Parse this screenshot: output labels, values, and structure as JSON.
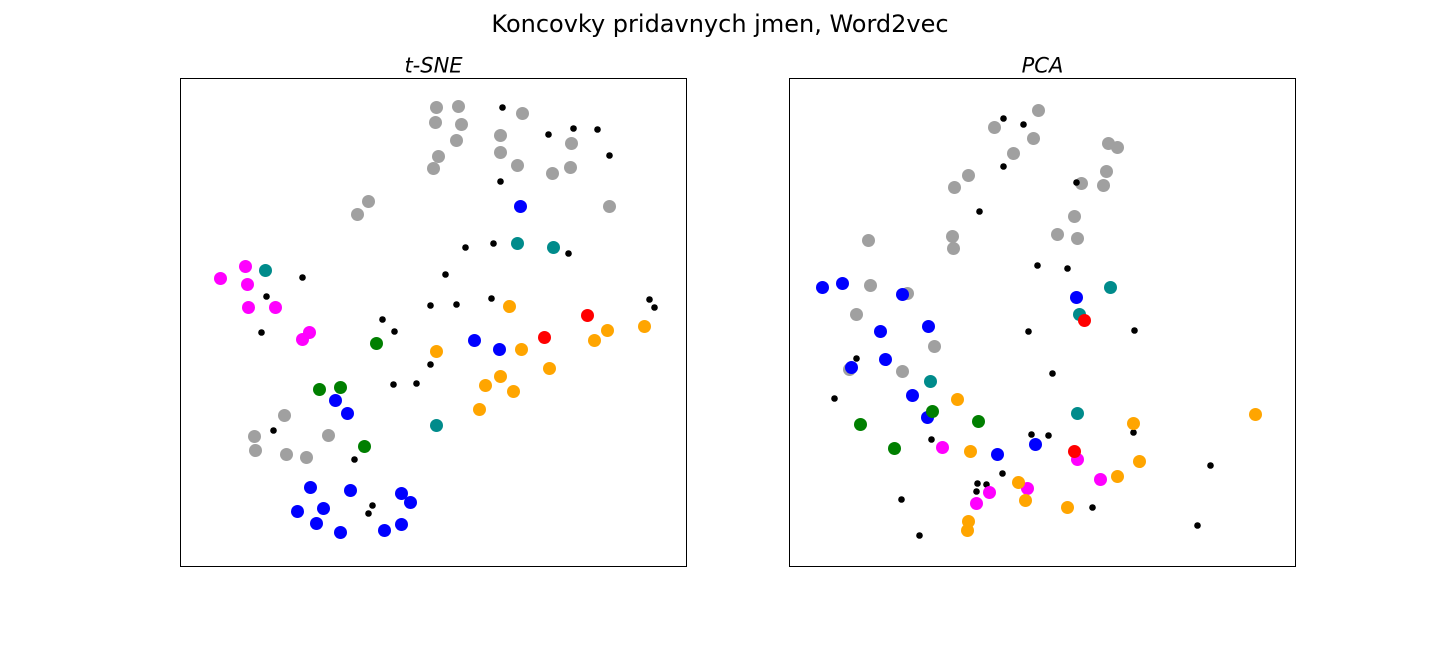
{
  "figure": {
    "title": "Koncovky pridavnych jmen, Word2vec"
  },
  "colors": {
    "gray": "#a0a0a0",
    "black": "#000000",
    "blue": "#0000ff",
    "teal": "#008b8b",
    "magenta": "#ff00ff",
    "green": "#007f00",
    "orange": "#ffa500",
    "red": "#ff0000"
  },
  "chart_data": [
    {
      "type": "scatter",
      "title": "t-SNE",
      "xlabel": "",
      "ylabel": "",
      "xlim": [
        0,
        506
      ],
      "ylim": [
        0,
        488
      ],
      "axis_ticks": "none",
      "grid": false,
      "series": [
        {
          "color": "gray",
          "size": "large",
          "points": [
            [
              256,
              29
            ],
            [
              278,
              28
            ],
            [
              281,
              46
            ],
            [
              342,
              35
            ],
            [
              255,
              44
            ],
            [
              320,
              57
            ],
            [
              276,
              62
            ],
            [
              320,
              74
            ],
            [
              258,
              78
            ],
            [
              253,
              90
            ],
            [
              337,
              87
            ],
            [
              391,
              65
            ],
            [
              390,
              89
            ],
            [
              372,
              95
            ],
            [
              429,
              128
            ],
            [
              188,
              123
            ],
            [
              177,
              136
            ],
            [
              104,
              337
            ],
            [
              74,
              358
            ],
            [
              148,
              357
            ],
            [
              75,
              372
            ],
            [
              106,
              376
            ],
            [
              126,
              379
            ]
          ]
        },
        {
          "color": "black",
          "size": "small",
          "points": [
            [
              322,
              29
            ],
            [
              368,
              56
            ],
            [
              393,
              50
            ],
            [
              417,
              51
            ],
            [
              429,
              77
            ],
            [
              320,
              103
            ],
            [
              285,
              169
            ],
            [
              313,
              165
            ],
            [
              388,
              175
            ],
            [
              265,
              196
            ],
            [
              122,
              199
            ],
            [
              86,
              218
            ],
            [
              250,
              227
            ],
            [
              276,
              226
            ],
            [
              311,
              220
            ],
            [
              81,
              254
            ],
            [
              202,
              241
            ],
            [
              214,
              253
            ],
            [
              469,
              221
            ],
            [
              474,
              229
            ],
            [
              250,
              286
            ],
            [
              213,
              306
            ],
            [
              236,
              305
            ],
            [
              93,
              352
            ],
            [
              174,
              381
            ],
            [
              192,
              427
            ],
            [
              188,
              435
            ]
          ]
        },
        {
          "color": "blue",
          "size": "large",
          "points": [
            [
              340,
              128
            ],
            [
              294,
              262
            ],
            [
              319,
              271
            ],
            [
              155,
              322
            ],
            [
              167,
              335
            ],
            [
              130,
              409
            ],
            [
              170,
              412
            ],
            [
              221,
              415
            ],
            [
              230,
              424
            ],
            [
              117,
              433
            ],
            [
              143,
              430
            ],
            [
              136,
              445
            ],
            [
              160,
              454
            ],
            [
              204,
              452
            ],
            [
              221,
              446
            ]
          ]
        },
        {
          "color": "teal",
          "size": "large",
          "points": [
            [
              337,
              165
            ],
            [
              373,
              169
            ],
            [
              85,
              192
            ],
            [
              256,
              347
            ]
          ]
        },
        {
          "color": "magenta",
          "size": "large",
          "points": [
            [
              40,
              200
            ],
            [
              65,
              188
            ],
            [
              67,
              206
            ],
            [
              68,
              229
            ],
            [
              95,
              229
            ],
            [
              129,
              254
            ],
            [
              122,
              261
            ]
          ]
        },
        {
          "color": "green",
          "size": "large",
          "points": [
            [
              196,
              265
            ],
            [
              139,
              311
            ],
            [
              160,
              309
            ],
            [
              184,
              368
            ]
          ]
        },
        {
          "color": "orange",
          "size": "large",
          "points": [
            [
              329,
              228
            ],
            [
              256,
              273
            ],
            [
              341,
              271
            ],
            [
              427,
              252
            ],
            [
              414,
              262
            ],
            [
              464,
              248
            ],
            [
              369,
              290
            ],
            [
              320,
              298
            ],
            [
              305,
              307
            ],
            [
              333,
              313
            ],
            [
              299,
              331
            ]
          ]
        },
        {
          "color": "red",
          "size": "large",
          "points": [
            [
              407,
              237
            ],
            [
              364,
              259
            ]
          ]
        }
      ]
    },
    {
      "type": "scatter",
      "title": "PCA",
      "xlabel": "",
      "ylabel": "",
      "xlim": [
        0,
        506
      ],
      "ylim": [
        0,
        488
      ],
      "axis_ticks": "none",
      "grid": false,
      "series": [
        {
          "color": "gray",
          "size": "large",
          "points": [
            [
              249,
              32
            ],
            [
              205,
              49
            ],
            [
              244,
              60
            ],
            [
              224,
              75
            ],
            [
              319,
              65
            ],
            [
              328,
              69
            ],
            [
              292,
              105
            ],
            [
              317,
              93
            ],
            [
              314,
              107
            ],
            [
              179,
              97
            ],
            [
              165,
              109
            ],
            [
              285,
              138
            ],
            [
              288,
              160
            ],
            [
              268,
              156
            ],
            [
              163,
              158
            ],
            [
              164,
              170
            ],
            [
              79,
              162
            ],
            [
              81,
              207
            ],
            [
              118,
              215
            ],
            [
              67,
              236
            ],
            [
              145,
              268
            ],
            [
              113,
              293
            ],
            [
              60,
              291
            ]
          ]
        },
        {
          "color": "black",
          "size": "small",
          "points": [
            [
              214,
              40
            ],
            [
              234,
              46
            ],
            [
              214,
              88
            ],
            [
              287,
              104
            ],
            [
              190,
              133
            ],
            [
              248,
              187
            ],
            [
              278,
              190
            ],
            [
              239,
              253
            ],
            [
              345,
              252
            ],
            [
              67,
              280
            ],
            [
              263,
              295
            ],
            [
              45,
              320
            ],
            [
              142,
              361
            ],
            [
              242,
              356
            ],
            [
              259,
              357
            ],
            [
              344,
              354
            ],
            [
              421,
              387
            ],
            [
              213,
              395
            ],
            [
              188,
              405
            ],
            [
              197,
              406
            ],
            [
              187,
              413
            ],
            [
              112,
              421
            ],
            [
              303,
              429
            ],
            [
              408,
              447
            ],
            [
              130,
              457
            ]
          ]
        },
        {
          "color": "blue",
          "size": "large",
          "points": [
            [
              33,
              209
            ],
            [
              53,
              205
            ],
            [
              113,
              216
            ],
            [
              287,
              219
            ],
            [
              91,
              253
            ],
            [
              139,
              248
            ],
            [
              96,
              281
            ],
            [
              62,
              289
            ],
            [
              123,
              317
            ],
            [
              138,
              339
            ],
            [
              208,
              376
            ],
            [
              246,
              366
            ]
          ]
        },
        {
          "color": "teal",
          "size": "large",
          "points": [
            [
              321,
              209
            ],
            [
              290,
              236
            ],
            [
              141,
              303
            ],
            [
              288,
              335
            ]
          ]
        },
        {
          "color": "magenta",
          "size": "large",
          "points": [
            [
              153,
              369
            ],
            [
              288,
              381
            ],
            [
              311,
              401
            ],
            [
              238,
              410
            ],
            [
              200,
              414
            ],
            [
              187,
              425
            ]
          ]
        },
        {
          "color": "green",
          "size": "large",
          "points": [
            [
              143,
              333
            ],
            [
              189,
              343
            ],
            [
              71,
              346
            ],
            [
              105,
              370
            ]
          ]
        },
        {
          "color": "orange",
          "size": "large",
          "points": [
            [
              168,
              321
            ],
            [
              466,
              336
            ],
            [
              344,
              345
            ],
            [
              181,
              373
            ],
            [
              350,
              383
            ],
            [
              328,
              398
            ],
            [
              229,
              404
            ],
            [
              236,
              422
            ],
            [
              278,
              429
            ],
            [
              179,
              443
            ],
            [
              178,
              452
            ]
          ]
        },
        {
          "color": "red",
          "size": "large",
          "points": [
            [
              295,
              242
            ],
            [
              285,
              373
            ]
          ]
        }
      ]
    }
  ]
}
